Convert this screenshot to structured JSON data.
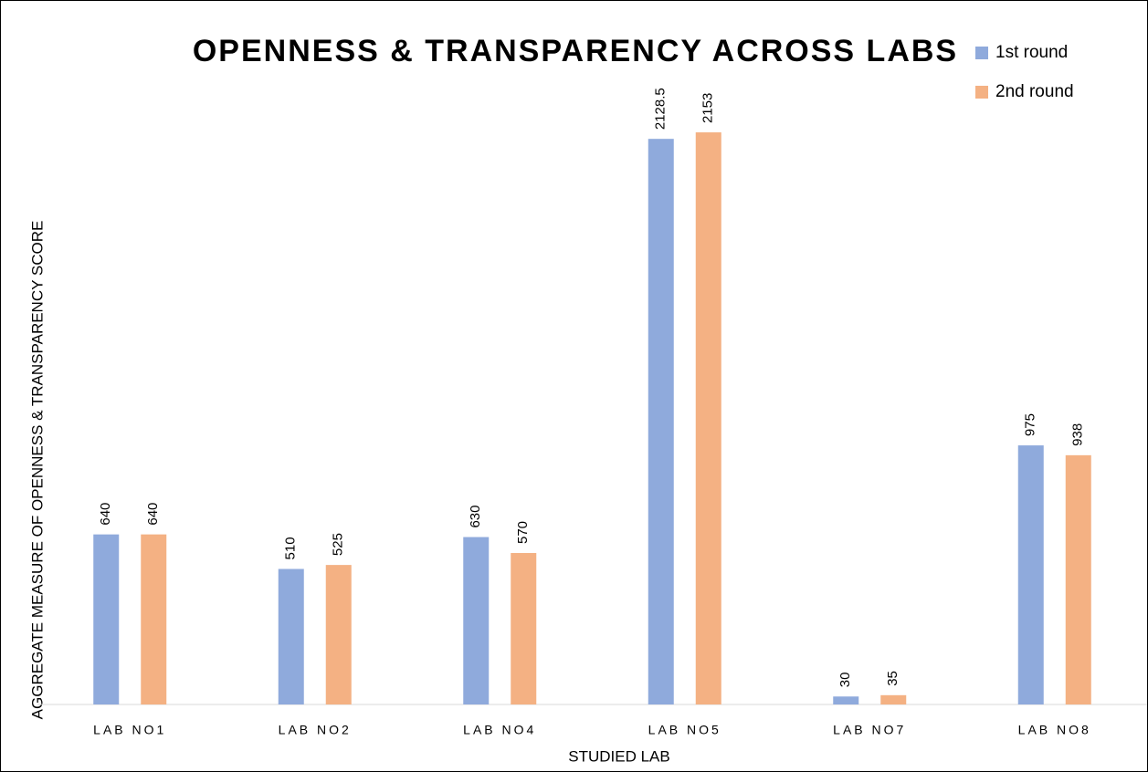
{
  "chart_data": {
    "type": "bar",
    "title": "OPENNESS & TRANSPARENCY ACROSS LABS",
    "x_label": "STUDIED LAB",
    "y_label": "AGGREGATE MEASURE OF OPENNESS & TRANSPARENCY SCORE",
    "categories": [
      "LAB NO1",
      "LAB NO2",
      "LAB NO4",
      "LAB NO5",
      "LAB NO7",
      "LAB NO8"
    ],
    "series": [
      {
        "name": "1st round",
        "color": "#8faadc",
        "values": [
          640,
          510,
          630,
          2128.5,
          30,
          975
        ]
      },
      {
        "name": "2nd round",
        "color": "#f4b183",
        "values": [
          640,
          525,
          570,
          2153,
          35,
          938
        ]
      }
    ],
    "ylim": [
      0,
      2500
    ],
    "legend": "top-right"
  }
}
